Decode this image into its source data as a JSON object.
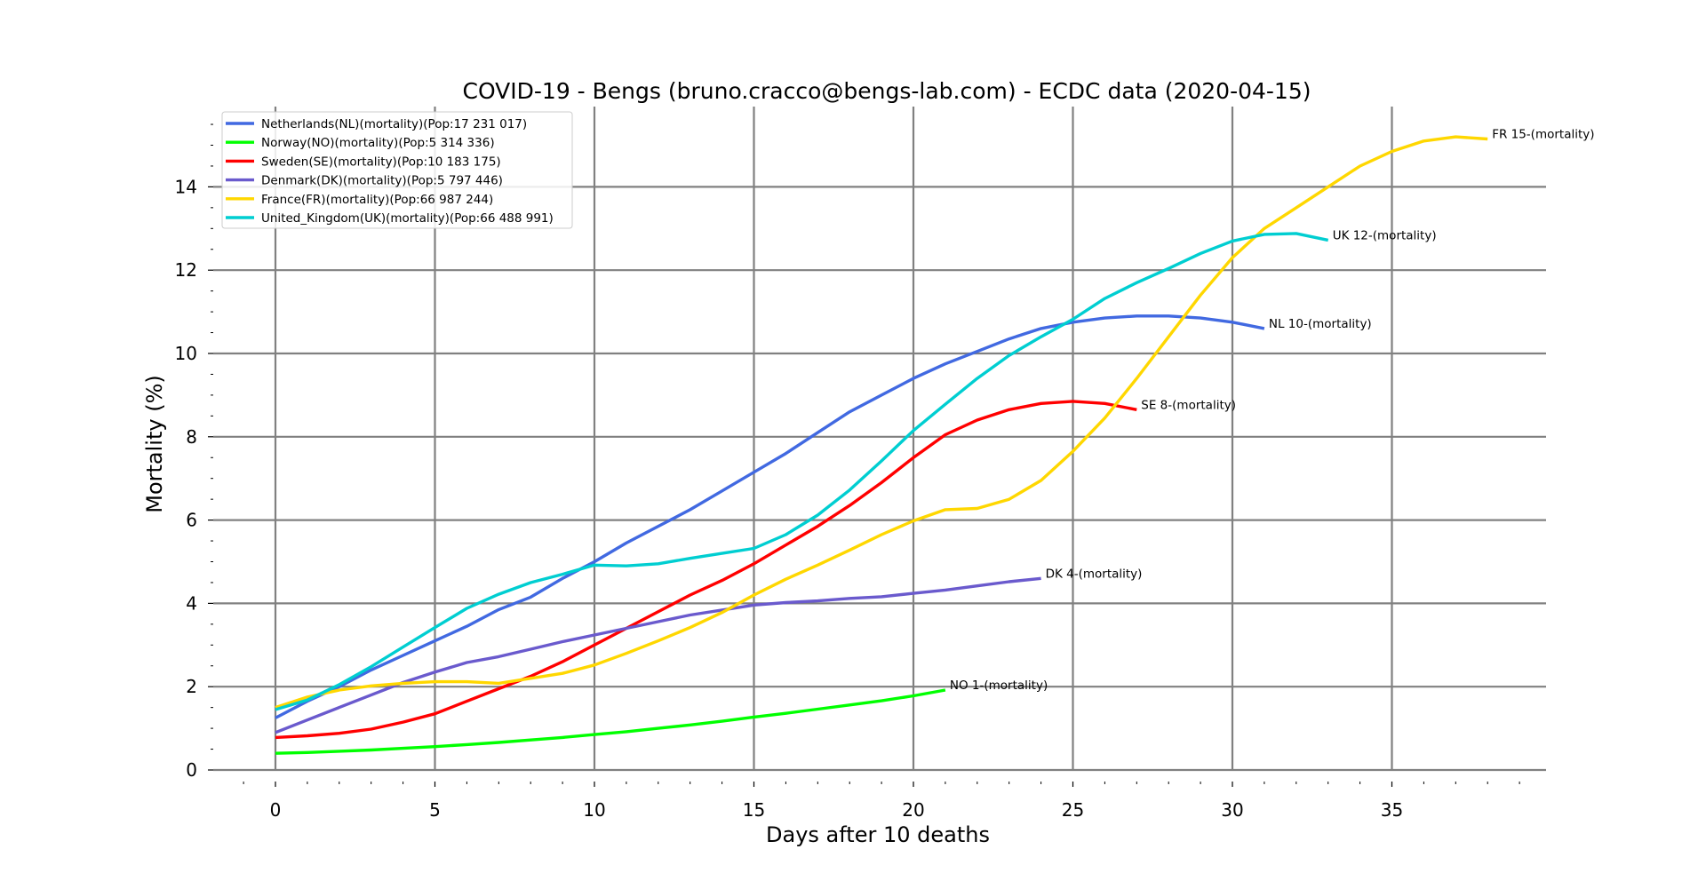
{
  "chart_data": {
    "type": "line",
    "title": "COVID-19 - Bengs (bruno.cracco@bengs-lab.com) - ECDC data  (2020-04-15)",
    "xlabel": "Days after 10 deaths",
    "ylabel": "Mortality (%)",
    "xlim": [
      -2,
      40
    ],
    "ylim": [
      0,
      16
    ],
    "x_ticks": [
      0,
      5,
      10,
      15,
      20,
      25,
      30,
      35
    ],
    "y_ticks": [
      0,
      2,
      4,
      6,
      8,
      10,
      12,
      14
    ],
    "grid": true,
    "legend_position": "top-left",
    "series": [
      {
        "name": "Netherlands(NL)(mortality)(Pop:17 231 017)",
        "end_label": "NL 10-(mortality)",
        "color": "#4169e1",
        "x": [
          0,
          1,
          2,
          3,
          4,
          5,
          6,
          7,
          8,
          9,
          10,
          11,
          12,
          13,
          14,
          15,
          16,
          17,
          18,
          19,
          20,
          21,
          22,
          23,
          24,
          25,
          26,
          27,
          28,
          29,
          30,
          31
        ],
        "values": [
          1.25,
          1.65,
          2.0,
          2.4,
          2.75,
          3.1,
          3.45,
          3.85,
          4.15,
          4.6,
          5.0,
          5.45,
          5.85,
          6.25,
          6.7,
          7.15,
          7.6,
          8.1,
          8.6,
          9.0,
          9.4,
          9.75,
          10.05,
          10.35,
          10.6,
          10.75,
          10.85,
          10.9,
          10.9,
          10.85,
          10.75,
          10.6
        ]
      },
      {
        "name": "Norway(NO)(mortality)(Pop:5 314 336)",
        "end_label": "NO 1-(mortality)",
        "color": "#00ff00",
        "x": [
          0,
          1,
          2,
          3,
          4,
          5,
          6,
          7,
          8,
          9,
          10,
          11,
          12,
          13,
          14,
          15,
          16,
          17,
          18,
          19,
          20,
          21
        ],
        "values": [
          0.4,
          0.42,
          0.45,
          0.48,
          0.52,
          0.56,
          0.61,
          0.66,
          0.72,
          0.78,
          0.85,
          0.92,
          1.0,
          1.08,
          1.17,
          1.27,
          1.36,
          1.46,
          1.56,
          1.66,
          1.78,
          1.92
        ]
      },
      {
        "name": "Sweden(SE)(mortality)(Pop:10 183 175)",
        "end_label": "SE 8-(mortality)",
        "color": "#ff0000",
        "x": [
          0,
          1,
          2,
          3,
          4,
          5,
          6,
          7,
          8,
          9,
          10,
          11,
          12,
          13,
          14,
          15,
          16,
          17,
          18,
          19,
          20,
          21,
          22,
          23,
          24,
          25,
          26,
          27
        ],
        "values": [
          0.78,
          0.82,
          0.88,
          0.98,
          1.15,
          1.35,
          1.65,
          1.95,
          2.25,
          2.6,
          3.0,
          3.4,
          3.8,
          4.2,
          4.55,
          4.95,
          5.4,
          5.85,
          6.35,
          6.9,
          7.5,
          8.05,
          8.4,
          8.65,
          8.8,
          8.85,
          8.8,
          8.65
        ]
      },
      {
        "name": "Denmark(DK)(mortality)(Pop:5 797 446)",
        "end_label": "DK 4-(mortality)",
        "color": "#6a5acd",
        "x": [
          0,
          1,
          2,
          3,
          4,
          5,
          6,
          7,
          8,
          9,
          10,
          11,
          12,
          13,
          14,
          15,
          16,
          17,
          18,
          19,
          20,
          21,
          22,
          23,
          24
        ],
        "values": [
          0.9,
          1.2,
          1.5,
          1.8,
          2.1,
          2.35,
          2.58,
          2.72,
          2.9,
          3.08,
          3.24,
          3.4,
          3.56,
          3.72,
          3.84,
          3.96,
          4.02,
          4.06,
          4.12,
          4.16,
          4.24,
          4.32,
          4.42,
          4.52,
          4.6
        ]
      },
      {
        "name": "France(FR)(mortality)(Pop:66 987 244)",
        "end_label": "FR 15-(mortality)",
        "color": "#ffd700",
        "x": [
          0,
          1,
          2,
          3,
          4,
          5,
          6,
          7,
          8,
          9,
          10,
          11,
          12,
          13,
          14,
          15,
          16,
          17,
          18,
          19,
          20,
          21,
          22,
          23,
          24,
          25,
          26,
          27,
          28,
          29,
          30,
          31,
          32,
          33,
          34,
          35,
          36,
          37,
          38
        ],
        "values": [
          1.5,
          1.75,
          1.92,
          2.02,
          2.08,
          2.12,
          2.12,
          2.08,
          2.2,
          2.32,
          2.52,
          2.8,
          3.1,
          3.42,
          3.78,
          4.2,
          4.58,
          4.92,
          5.28,
          5.65,
          5.98,
          6.25,
          6.28,
          6.5,
          6.95,
          7.65,
          8.45,
          9.4,
          10.4,
          11.4,
          12.3,
          13.0,
          13.5,
          14.0,
          14.5,
          14.85,
          15.1,
          15.2,
          15.15
        ]
      },
      {
        "name": "United_Kingdom(UK)(mortality)(Pop:66 488 991)",
        "end_label": "UK 12-(mortality)",
        "color": "#00ced1",
        "x": [
          0,
          1,
          2,
          3,
          4,
          5,
          6,
          7,
          8,
          9,
          10,
          11,
          12,
          13,
          14,
          15,
          16,
          17,
          18,
          19,
          20,
          21,
          22,
          23,
          24,
          25,
          26,
          27,
          28,
          29,
          30,
          31,
          32,
          33
        ],
        "values": [
          1.45,
          1.68,
          2.05,
          2.48,
          2.95,
          3.42,
          3.88,
          4.22,
          4.5,
          4.7,
          4.92,
          4.9,
          4.95,
          5.08,
          5.2,
          5.32,
          5.65,
          6.12,
          6.72,
          7.42,
          8.15,
          8.78,
          9.4,
          9.95,
          10.4,
          10.82,
          11.32,
          11.7,
          12.04,
          12.4,
          12.7,
          12.86,
          12.88,
          12.72
        ]
      }
    ]
  }
}
